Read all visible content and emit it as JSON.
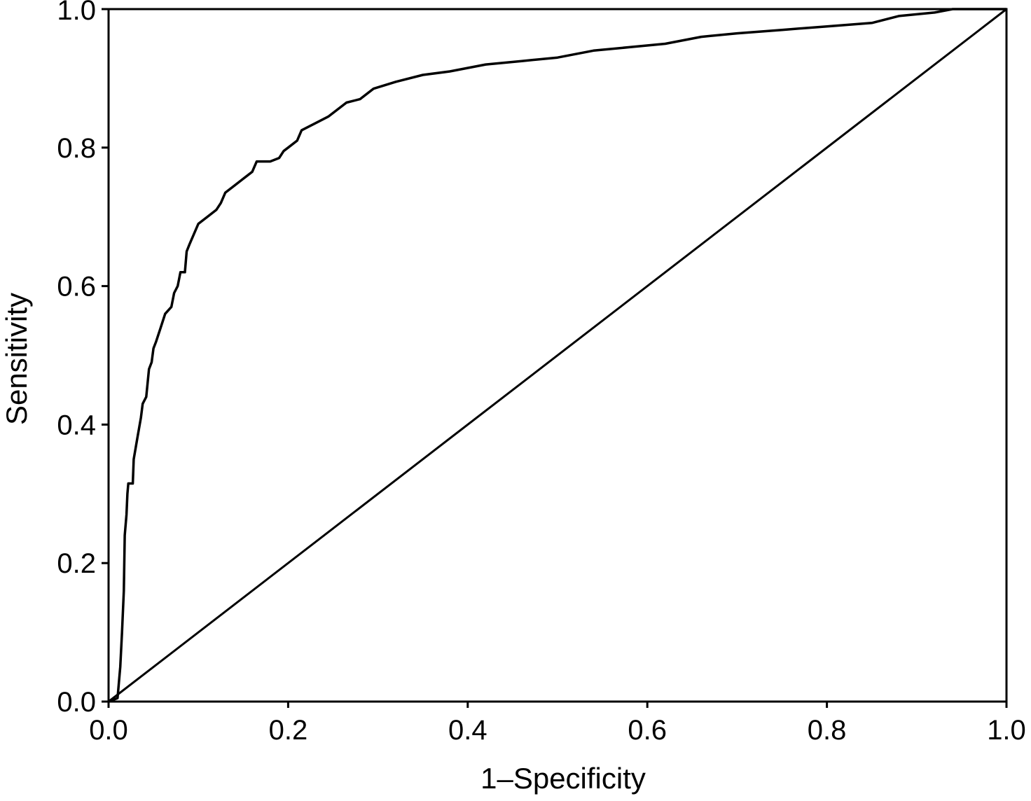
{
  "chart_data": {
    "type": "line",
    "title": "",
    "xlabel": "1–Specificity",
    "ylabel": "Sensitivity",
    "xlim": [
      0,
      1
    ],
    "ylim": [
      0,
      1
    ],
    "grid": false,
    "x_ticks": [
      {
        "value": 0.0,
        "label": "0.0"
      },
      {
        "value": 0.2,
        "label": "0.2"
      },
      {
        "value": 0.4,
        "label": "0.4"
      },
      {
        "value": 0.6,
        "label": "0.6"
      },
      {
        "value": 0.8,
        "label": "0.8"
      },
      {
        "value": 1.0,
        "label": "1.0"
      }
    ],
    "y_ticks": [
      {
        "value": 0.0,
        "label": "0.0"
      },
      {
        "value": 0.2,
        "label": "0.2"
      },
      {
        "value": 0.4,
        "label": "0.4"
      },
      {
        "value": 0.6,
        "label": "0.6"
      },
      {
        "value": 0.8,
        "label": "0.8"
      },
      {
        "value": 1.0,
        "label": "1.0"
      }
    ],
    "series": [
      {
        "color": "#000000",
        "points": [
          [
            0.0,
            0.0
          ],
          [
            0.01,
            0.005
          ],
          [
            0.013,
            0.05
          ],
          [
            0.015,
            0.1
          ],
          [
            0.017,
            0.16
          ],
          [
            0.018,
            0.24
          ],
          [
            0.02,
            0.27
          ],
          [
            0.021,
            0.3
          ],
          [
            0.022,
            0.315
          ],
          [
            0.027,
            0.315
          ],
          [
            0.028,
            0.35
          ],
          [
            0.032,
            0.38
          ],
          [
            0.036,
            0.41
          ],
          [
            0.038,
            0.43
          ],
          [
            0.042,
            0.44
          ],
          [
            0.045,
            0.48
          ],
          [
            0.048,
            0.49
          ],
          [
            0.05,
            0.51
          ],
          [
            0.053,
            0.52
          ],
          [
            0.058,
            0.54
          ],
          [
            0.063,
            0.56
          ],
          [
            0.07,
            0.57
          ],
          [
            0.073,
            0.59
          ],
          [
            0.077,
            0.6
          ],
          [
            0.08,
            0.62
          ],
          [
            0.085,
            0.62
          ],
          [
            0.087,
            0.65
          ],
          [
            0.09,
            0.66
          ],
          [
            0.095,
            0.675
          ],
          [
            0.1,
            0.69
          ],
          [
            0.11,
            0.7
          ],
          [
            0.12,
            0.71
          ],
          [
            0.125,
            0.72
          ],
          [
            0.13,
            0.735
          ],
          [
            0.14,
            0.745
          ],
          [
            0.15,
            0.755
          ],
          [
            0.16,
            0.765
          ],
          [
            0.165,
            0.78
          ],
          [
            0.17,
            0.78
          ],
          [
            0.18,
            0.78
          ],
          [
            0.19,
            0.785
          ],
          [
            0.195,
            0.795
          ],
          [
            0.2,
            0.8
          ],
          [
            0.21,
            0.81
          ],
          [
            0.215,
            0.825
          ],
          [
            0.23,
            0.835
          ],
          [
            0.245,
            0.845
          ],
          [
            0.255,
            0.855
          ],
          [
            0.265,
            0.865
          ],
          [
            0.28,
            0.87
          ],
          [
            0.295,
            0.885
          ],
          [
            0.32,
            0.895
          ],
          [
            0.35,
            0.905
          ],
          [
            0.38,
            0.91
          ],
          [
            0.42,
            0.92
          ],
          [
            0.46,
            0.925
          ],
          [
            0.5,
            0.93
          ],
          [
            0.54,
            0.94
          ],
          [
            0.58,
            0.945
          ],
          [
            0.62,
            0.95
          ],
          [
            0.66,
            0.96
          ],
          [
            0.7,
            0.965
          ],
          [
            0.75,
            0.97
          ],
          [
            0.8,
            0.975
          ],
          [
            0.85,
            0.98
          ],
          [
            0.88,
            0.99
          ],
          [
            0.92,
            0.995
          ],
          [
            0.94,
            1.0
          ],
          [
            1.0,
            1.0
          ]
        ]
      },
      {
        "color": "#000000",
        "points": [
          [
            0.0,
            0.0
          ],
          [
            1.0,
            1.0
          ]
        ]
      }
    ]
  }
}
